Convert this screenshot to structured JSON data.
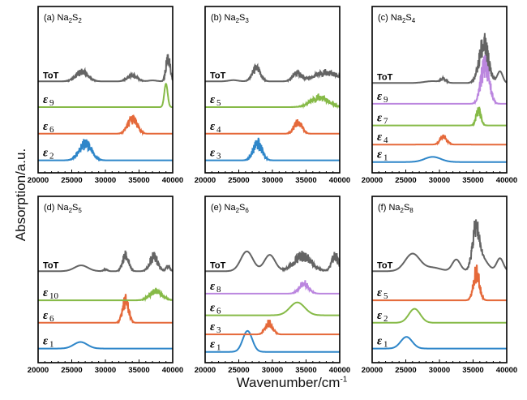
{
  "figure": {
    "ylabel": "Absorption/a.u.",
    "xlabel_main": "Wavenumber/cm",
    "xlabel_sup": "-1"
  },
  "colors": {
    "ToT": "#646464",
    "blue": "#2E86C9",
    "orange": "#E5693A",
    "green": "#86BA47",
    "purple": "#BB86DF",
    "axis": "#000000"
  },
  "chart_data": [
    {
      "type": "line",
      "panel": "(a)",
      "title": "(a) Na2S2",
      "title_parts": [
        "(a) Na",
        "2",
        "S",
        "2"
      ],
      "xlim": [
        20000,
        40000
      ],
      "xticks": [
        "20000",
        "25000",
        "30000",
        "35000",
        "40000"
      ],
      "series": [
        {
          "name": "ToT",
          "label": "ToT",
          "color": "ToT",
          "peaks": [
            [
              26500,
              0.55,
              900,
              "fine"
            ],
            [
              34000,
              0.35,
              700,
              "fine"
            ],
            [
              37000,
              0.04,
              600,
              "smooth"
            ],
            [
              39300,
              1.4,
              300,
              "fine"
            ]
          ]
        },
        {
          "name": "ε9",
          "label_sub": "9",
          "color": "green",
          "peaks": [
            [
              39000,
              1.0,
              250,
              "smooth"
            ]
          ]
        },
        {
          "name": "ε6",
          "label_sub": "6",
          "color": "orange",
          "peaks": [
            [
              34000,
              0.85,
              700,
              "fine"
            ]
          ]
        },
        {
          "name": "ε2",
          "label_sub": "2",
          "color": "blue",
          "peaks": [
            [
              27000,
              0.95,
              900,
              "fine"
            ]
          ]
        }
      ]
    },
    {
      "type": "line",
      "panel": "(b)",
      "title": "(b) Na2S3",
      "title_parts": [
        "(b) Na",
        "2",
        "S",
        "3"
      ],
      "xlim": [
        20000,
        40000
      ],
      "xticks": [
        "20000",
        "25000",
        "30000",
        "35000",
        "40000"
      ],
      "series": [
        {
          "name": "ToT",
          "label": "ToT",
          "color": "ToT",
          "peaks": [
            [
              24200,
              0.05,
              700,
              "smooth"
            ],
            [
              27600,
              0.75,
              600,
              "fine"
            ],
            [
              33700,
              0.45,
              650,
              "fine"
            ],
            [
              38000,
              0.5,
              1800,
              "fine"
            ]
          ]
        },
        {
          "name": "ε5",
          "label_sub": "5",
          "color": "green",
          "peaks": [
            [
              37000,
              0.55,
              1300,
              "fine"
            ]
          ]
        },
        {
          "name": "ε4",
          "label_sub": "4",
          "color": "orange",
          "peaks": [
            [
              33800,
              0.65,
              600,
              "fine"
            ]
          ]
        },
        {
          "name": "ε3",
          "label_sub": "3",
          "color": "blue",
          "peaks": [
            [
              27800,
              1.0,
              650,
              "fine"
            ]
          ]
        }
      ]
    },
    {
      "type": "line",
      "panel": "(c)",
      "title": "(c) Na2S4",
      "title_parts": [
        "(c) Na",
        "2",
        "S",
        "4"
      ],
      "xlim": [
        20000,
        40000
      ],
      "xticks": [
        "20000",
        "25000",
        "30000",
        "35000",
        "40000"
      ],
      "series": [
        {
          "name": "ToT",
          "label": "ToT",
          "color": "ToT",
          "peaks": [
            [
              29000,
              0.08,
              1200,
              "smooth"
            ],
            [
              30600,
              0.2,
              400,
              "fine"
            ],
            [
              36600,
              2.2,
              700,
              "fine"
            ],
            [
              39000,
              0.5,
              400,
              "smooth"
            ]
          ]
        },
        {
          "name": "ε9",
          "label_sub": "9",
          "color": "purple",
          "peaks": [
            [
              36800,
              2.4,
              600,
              "fine"
            ]
          ]
        },
        {
          "name": "ε7",
          "label_sub": "7",
          "color": "green",
          "peaks": [
            [
              35800,
              0.9,
              350,
              "fine"
            ]
          ]
        },
        {
          "name": "ε4",
          "label_sub": "4",
          "color": "orange",
          "peaks": [
            [
              30600,
              0.45,
              500,
              "fine"
            ]
          ]
        },
        {
          "name": "ε1",
          "label_sub": "1",
          "color": "blue",
          "peaks": [
            [
              29000,
              0.22,
              1200,
              "smooth"
            ]
          ]
        }
      ]
    },
    {
      "type": "line",
      "panel": "(d)",
      "title": "(d) Na2S5",
      "title_parts": [
        "(d) Na",
        "2",
        "S",
        "5"
      ],
      "xlim": [
        20000,
        40000
      ],
      "xticks": [
        "20000",
        "25000",
        "30000",
        "35000",
        "40000"
      ],
      "series": [
        {
          "name": "ToT",
          "label": "ToT",
          "color": "ToT",
          "peaks": [
            [
              26400,
              0.25,
              1000,
              "smooth"
            ],
            [
              30000,
              0.1,
              300,
              "fine"
            ],
            [
              33000,
              0.9,
              450,
              "fine"
            ],
            [
              37200,
              0.85,
              600,
              "fine"
            ],
            [
              39300,
              0.3,
              300,
              "fine"
            ]
          ]
        },
        {
          "name": "ε10",
          "label_sub": "10",
          "color": "green",
          "peaks": [
            [
              37500,
              0.55,
              900,
              "fine"
            ]
          ]
        },
        {
          "name": "ε6",
          "label_sub": "6",
          "color": "orange",
          "peaks": [
            [
              33000,
              1.3,
              450,
              "fine"
            ]
          ]
        },
        {
          "name": "ε1",
          "label_sub": "1",
          "color": "blue",
          "peaks": [
            [
              26300,
              0.28,
              1000,
              "smooth"
            ]
          ]
        }
      ]
    },
    {
      "type": "line",
      "panel": "(e)",
      "title": "(e) Na2S6",
      "title_parts": [
        "(e) Na",
        "2",
        "S",
        "6"
      ],
      "xlim": [
        20000,
        40000
      ],
      "xticks": [
        "20000",
        "25000",
        "30000",
        "35000",
        "40000"
      ],
      "series": [
        {
          "name": "ToT",
          "label": "ToT",
          "color": "ToT",
          "peaks": [
            [
              26200,
              0.85,
              900,
              "smooth"
            ],
            [
              29600,
              0.7,
              800,
              "smooth"
            ],
            [
              34500,
              0.9,
              1300,
              "fine"
            ],
            [
              39300,
              0.9,
              500,
              "fine"
            ]
          ]
        },
        {
          "name": "ε8",
          "label_sub": "8",
          "color": "purple",
          "peaks": [
            [
              34700,
              0.6,
              700,
              "fine"
            ]
          ]
        },
        {
          "name": "ε6",
          "label_sub": "6",
          "color": "green",
          "peaks": [
            [
              33700,
              0.55,
              1100,
              "smooth"
            ]
          ]
        },
        {
          "name": "ε3",
          "label_sub": "3",
          "color": "orange",
          "peaks": [
            [
              29500,
              0.65,
              550,
              "fine"
            ]
          ]
        },
        {
          "name": "ε1",
          "label_sub": "1",
          "color": "blue",
          "peaks": [
            [
              26300,
              0.9,
              700,
              "smooth"
            ]
          ]
        }
      ]
    },
    {
      "type": "line",
      "panel": "(f)",
      "title": "(f) Na2S8",
      "title_parts": [
        "(f) Na",
        "2",
        "S",
        "8"
      ],
      "xlim": [
        20000,
        40000
      ],
      "xticks": [
        "20000",
        "25000",
        "30000",
        "35000",
        "40000"
      ],
      "series": [
        {
          "name": "ToT",
          "label": "ToT",
          "color": "ToT",
          "peaks": [
            [
              26000,
              0.75,
              1100,
              "smooth"
            ],
            [
              29000,
              0.15,
              1200,
              "smooth"
            ],
            [
              32500,
              0.5,
              600,
              "smooth"
            ],
            [
              35400,
              2.0,
              500,
              "fine"
            ],
            [
              36200,
              0.6,
              900,
              "smooth"
            ],
            [
              39000,
              0.55,
              500,
              "smooth"
            ]
          ]
        },
        {
          "name": "ε5",
          "label_sub": "5",
          "color": "orange",
          "peaks": [
            [
              35500,
              1.6,
              450,
              "fine"
            ]
          ]
        },
        {
          "name": "ε2",
          "label_sub": "2",
          "color": "green",
          "peaks": [
            [
              26300,
              0.6,
              850,
              "smooth"
            ]
          ]
        },
        {
          "name": "ε1",
          "label_sub": "1",
          "color": "blue",
          "peaks": [
            [
              25100,
              0.5,
              850,
              "smooth"
            ]
          ]
        }
      ]
    }
  ]
}
